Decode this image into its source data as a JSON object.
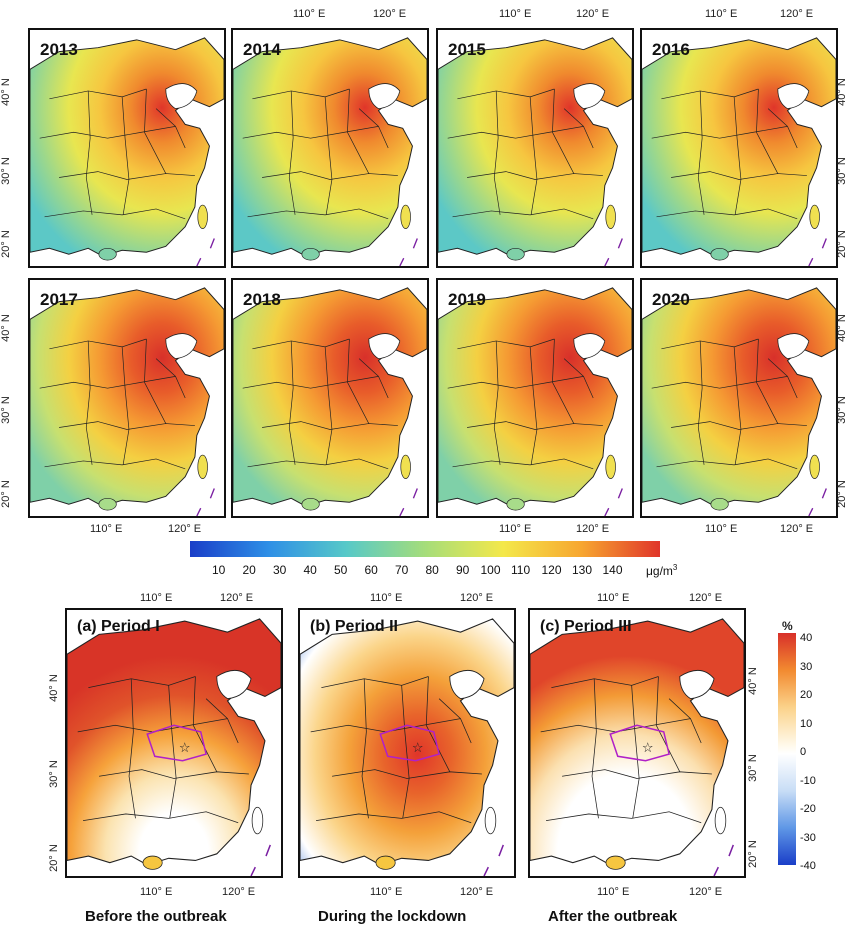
{
  "years": [
    "2013",
    "2014",
    "2015",
    "2016",
    "2017",
    "2018",
    "2019",
    "2020"
  ],
  "lon_labels": [
    "110° E",
    "120° E"
  ],
  "lat_labels": [
    "40° N",
    "30° N",
    "20° N"
  ],
  "colorbar": {
    "ticks": [
      "10",
      "20",
      "30",
      "40",
      "50",
      "60",
      "70",
      "80",
      "90",
      "100",
      "110",
      "120",
      "130",
      "140"
    ],
    "unit": "μg/m",
    "unit_sup": "3",
    "colors": [
      "#1a3ec8",
      "#2e8fe6",
      "#57c9c8",
      "#a5dd7a",
      "#f4e84a",
      "#f7a630",
      "#e0352a"
    ]
  },
  "periods": [
    {
      "title": "(a) Period I",
      "caption": "Before the outbreak"
    },
    {
      "title": "(b) Period II",
      "caption": "During the lockdown"
    },
    {
      "title": "(c) Period III",
      "caption": "After the outbreak"
    }
  ],
  "pct_colorbar": {
    "unit": "%",
    "ticks": [
      "40",
      "30",
      "20",
      "10",
      "0",
      "-10",
      "-20",
      "-30",
      "-40"
    ]
  }
}
